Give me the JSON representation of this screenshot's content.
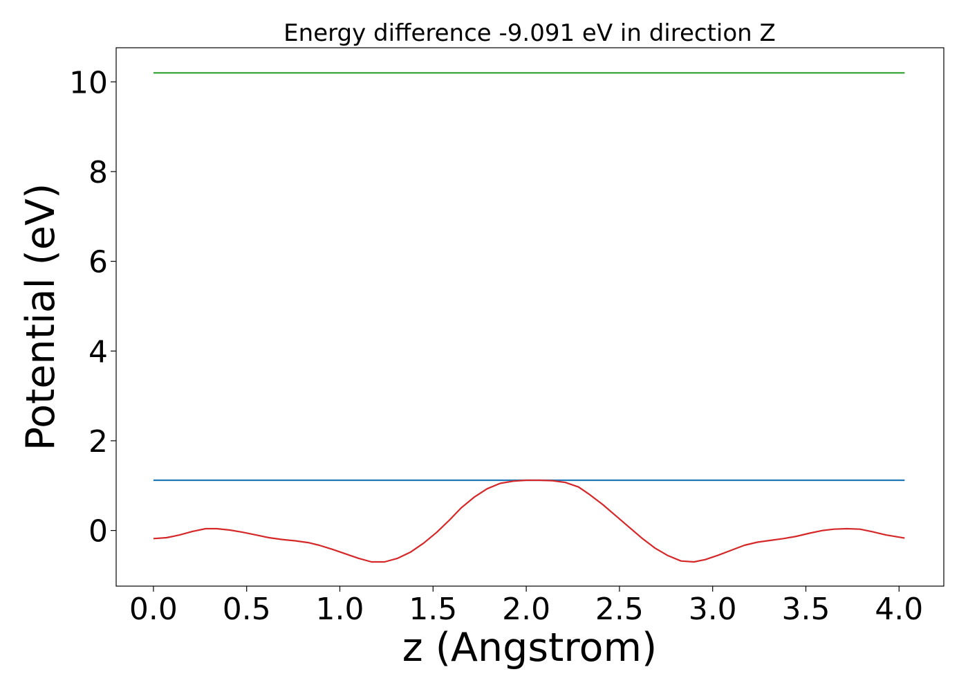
{
  "chart_data": {
    "type": "line",
    "title": "Energy difference -9.091 eV in direction Z",
    "xlabel": "z (Angstrom)",
    "ylabel": "Potential (eV)",
    "xlim": [
      -0.2,
      4.24
    ],
    "ylim": [
      -1.24,
      10.76
    ],
    "x_ticks": [
      0.0,
      0.5,
      1.0,
      1.5,
      2.0,
      2.5,
      3.0,
      3.5,
      4.0
    ],
    "x_tick_labels": [
      "0.0",
      "0.5",
      "1.0",
      "1.5",
      "2.0",
      "2.5",
      "3.0",
      "3.5",
      "4.0"
    ],
    "y_ticks": [
      0,
      2,
      4,
      6,
      8,
      10
    ],
    "y_tick_labels": [
      "0",
      "2",
      "4",
      "6",
      "8",
      "10"
    ],
    "grid": false,
    "legend": "none",
    "series": [
      {
        "color": "#2ca02c",
        "x": [
          0.0,
          4.03
        ],
        "y": [
          10.2,
          10.2
        ]
      },
      {
        "color": "#1f77b4",
        "x": [
          0.0,
          4.03
        ],
        "y": [
          1.12,
          1.12
        ]
      },
      {
        "color": "#d62728",
        "x": [
          0.0,
          0.07,
          0.14,
          0.21,
          0.28,
          0.34,
          0.41,
          0.48,
          0.55,
          0.62,
          0.69,
          0.76,
          0.83,
          0.89,
          0.96,
          1.03,
          1.1,
          1.17,
          1.24,
          1.31,
          1.38,
          1.45,
          1.52,
          1.59,
          1.65,
          1.72,
          1.79,
          1.86,
          1.93,
          2.0,
          2.07,
          2.14,
          2.21,
          2.28,
          2.34,
          2.41,
          2.48,
          2.55,
          2.62,
          2.69,
          2.76,
          2.83,
          2.9,
          2.96,
          3.03,
          3.1,
          3.17,
          3.24,
          3.31,
          3.38,
          3.45,
          3.52,
          3.59,
          3.65,
          3.72,
          3.79,
          3.86,
          3.93,
          4.03
        ],
        "y": [
          -0.18,
          -0.16,
          -0.1,
          -0.02,
          0.04,
          0.04,
          0.01,
          -0.04,
          -0.1,
          -0.16,
          -0.2,
          -0.23,
          -0.27,
          -0.33,
          -0.42,
          -0.52,
          -0.62,
          -0.7,
          -0.7,
          -0.62,
          -0.48,
          -0.28,
          -0.04,
          0.24,
          0.5,
          0.74,
          0.93,
          1.05,
          1.1,
          1.12,
          1.12,
          1.11,
          1.07,
          0.97,
          0.8,
          0.58,
          0.33,
          0.08,
          -0.17,
          -0.39,
          -0.56,
          -0.68,
          -0.7,
          -0.65,
          -0.55,
          -0.44,
          -0.33,
          -0.26,
          -0.22,
          -0.18,
          -0.13,
          -0.06,
          0.0,
          0.03,
          0.04,
          0.03,
          -0.03,
          -0.1,
          -0.17
        ]
      }
    ]
  }
}
